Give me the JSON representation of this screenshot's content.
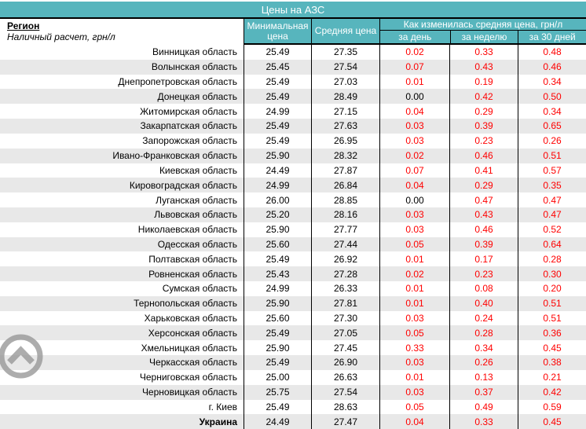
{
  "title_bar": {
    "title": "Цены на АЗС"
  },
  "table": {
    "region_header": {
      "title": "Регион",
      "subtitle": "Наличный расчет, грн/л"
    },
    "col_min": "Минимальная цена",
    "col_avg": "Средняя цена",
    "col_change_group": "Как изменилась средняя цена, грн/л",
    "col_day": "за день",
    "col_week": "за неделю",
    "col_month": "за 30 дней",
    "rows": [
      {
        "region": "Винницкая область",
        "min": "25.49",
        "avg": "27.35",
        "day": "0.02",
        "week": "0.33",
        "month": "0.48",
        "bold": false
      },
      {
        "region": "Волынская область",
        "min": "25.45",
        "avg": "27.54",
        "day": "0.07",
        "week": "0.43",
        "month": "0.46",
        "bold": false
      },
      {
        "region": "Днепропетровская область",
        "min": "25.49",
        "avg": "27.03",
        "day": "0.01",
        "week": "0.19",
        "month": "0.34",
        "bold": false
      },
      {
        "region": "Донецкая область",
        "min": "25.49",
        "avg": "28.49",
        "day": "0.00",
        "week": "0.42",
        "month": "0.50",
        "bold": false
      },
      {
        "region": "Житомирская область",
        "min": "24.99",
        "avg": "27.15",
        "day": "0.04",
        "week": "0.29",
        "month": "0.34",
        "bold": false
      },
      {
        "region": "Закарпатская область",
        "min": "25.49",
        "avg": "27.63",
        "day": "0.03",
        "week": "0.39",
        "month": "0.65",
        "bold": false
      },
      {
        "region": "Запорожская область",
        "min": "25.49",
        "avg": "26.95",
        "day": "0.03",
        "week": "0.23",
        "month": "0.26",
        "bold": false
      },
      {
        "region": "Ивано-Франковская область",
        "min": "25.90",
        "avg": "28.32",
        "day": "0.02",
        "week": "0.46",
        "month": "0.51",
        "bold": false
      },
      {
        "region": "Киевская область",
        "min": "24.49",
        "avg": "27.87",
        "day": "0.07",
        "week": "0.41",
        "month": "0.57",
        "bold": false
      },
      {
        "region": "Кировоградская область",
        "min": "24.99",
        "avg": "26.84",
        "day": "0.04",
        "week": "0.29",
        "month": "0.35",
        "bold": false
      },
      {
        "region": "Луганская область",
        "min": "26.00",
        "avg": "28.85",
        "day": "0.00",
        "week": "0.47",
        "month": "0.47",
        "bold": false
      },
      {
        "region": "Львовская область",
        "min": "25.20",
        "avg": "28.16",
        "day": "0.03",
        "week": "0.43",
        "month": "0.47",
        "bold": false
      },
      {
        "region": "Николаевская область",
        "min": "25.90",
        "avg": "27.77",
        "day": "0.03",
        "week": "0.46",
        "month": "0.52",
        "bold": false
      },
      {
        "region": "Одесская область",
        "min": "25.60",
        "avg": "27.44",
        "day": "0.05",
        "week": "0.39",
        "month": "0.64",
        "bold": false
      },
      {
        "region": "Полтавская область",
        "min": "25.49",
        "avg": "26.92",
        "day": "0.01",
        "week": "0.17",
        "month": "0.28",
        "bold": false
      },
      {
        "region": "Ровненская область",
        "min": "25.43",
        "avg": "27.28",
        "day": "0.02",
        "week": "0.23",
        "month": "0.30",
        "bold": false
      },
      {
        "region": "Сумская область",
        "min": "24.99",
        "avg": "26.33",
        "day": "0.01",
        "week": "0.08",
        "month": "0.20",
        "bold": false
      },
      {
        "region": "Тернопольская область",
        "min": "25.90",
        "avg": "27.81",
        "day": "0.01",
        "week": "0.40",
        "month": "0.51",
        "bold": false
      },
      {
        "region": "Харьковская область",
        "min": "25.60",
        "avg": "27.30",
        "day": "0.03",
        "week": "0.24",
        "month": "0.51",
        "bold": false
      },
      {
        "region": "Херсонская область",
        "min": "25.49",
        "avg": "27.05",
        "day": "0.05",
        "week": "0.28",
        "month": "0.36",
        "bold": false
      },
      {
        "region": "Хмельницкая область",
        "min": "25.90",
        "avg": "27.45",
        "day": "0.33",
        "week": "0.34",
        "month": "0.45",
        "bold": false
      },
      {
        "region": "Черкасская область",
        "min": "25.49",
        "avg": "26.90",
        "day": "0.03",
        "week": "0.26",
        "month": "0.38",
        "bold": false
      },
      {
        "region": "Черниговская область",
        "min": "25.00",
        "avg": "26.63",
        "day": "0.01",
        "week": "0.13",
        "month": "0.21",
        "bold": false
      },
      {
        "region": "Черновицкая область",
        "min": "25.75",
        "avg": "27.54",
        "day": "0.03",
        "week": "0.37",
        "month": "0.42",
        "bold": false
      },
      {
        "region": "г. Киев",
        "min": "25.49",
        "avg": "28.63",
        "day": "0.05",
        "week": "0.49",
        "month": "0.59",
        "bold": false
      },
      {
        "region": "Украина",
        "min": "24.49",
        "avg": "27.47",
        "day": "0.04",
        "week": "0.33",
        "month": "0.45",
        "bold": true
      }
    ]
  },
  "icons": {
    "scroll_to_top": "chevron-up-circle-icon"
  },
  "colors": {
    "header_teal": "#57b5bd",
    "change_positive": "#ff0000",
    "row_alt": "#e8e8e8"
  }
}
